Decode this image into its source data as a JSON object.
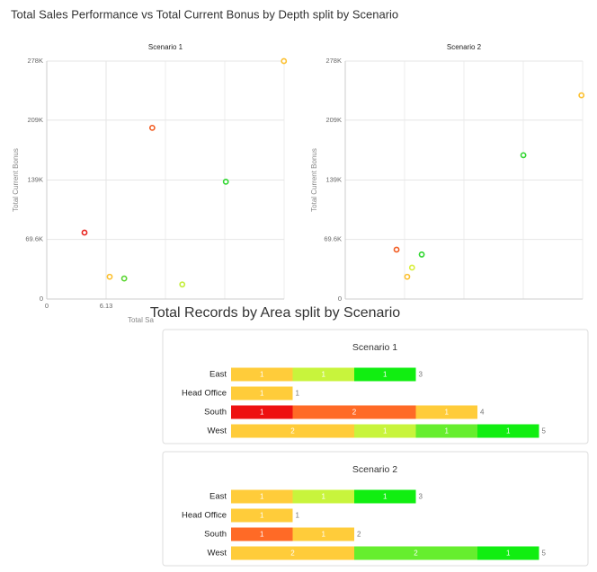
{
  "dashboard": {
    "scatter_title": "Total Sales Performance vs Total Current Bonus by Depth split by Scenario",
    "bar_title": "Total Records by Area split by Scenario"
  },
  "chart_data": [
    {
      "type": "scatter",
      "title": "Scenario 1",
      "xlabel": "Total Sa",
      "ylabel": "Total Current Bonus",
      "x": [
        3.9,
        10.9,
        24.5,
        18.5,
        6.5,
        8.0,
        14.0
      ],
      "values": [
        77600,
        200000,
        278000,
        137000,
        26000,
        24000,
        17000
      ],
      "colors": [
        "#e8231e",
        "#f25c22",
        "#fcc02f",
        "#2fd62f",
        "#fcc02f",
        "#5ad632",
        "#c4ee3a"
      ],
      "xlim": [
        0,
        24.52
      ],
      "ylim": [
        0,
        278000
      ],
      "xticks": [
        0,
        6.13
      ],
      "yticks": [
        0,
        {
          "value": 69600,
          "label": "69.6K"
        },
        {
          "value": 139000,
          "label": "139K"
        },
        {
          "value": 209000,
          "label": "209K"
        },
        {
          "value": 278000,
          "label": "278K"
        }
      ],
      "grid": true
    },
    {
      "type": "scatter",
      "title": "Scenario 2",
      "ylabel": "Total Current Bonus",
      "x": [
        5.3,
        6.9,
        6.4,
        7.9,
        18.4,
        24.4
      ],
      "values": [
        57700,
        36700,
        26000,
        52000,
        168000,
        238000
      ],
      "colors": [
        "#f25c22",
        "#d8ee3a",
        "#fcc02f",
        "#2fd62f",
        "#2fd62f",
        "#fcc02f"
      ],
      "xlim": [
        0,
        24.52
      ],
      "ylim": [
        0,
        278000
      ],
      "yticks": [
        0,
        {
          "value": 69600,
          "label": "69.6K"
        },
        {
          "value": 139000,
          "label": "139K"
        },
        {
          "value": 209000,
          "label": "209K"
        },
        {
          "value": 278000,
          "label": "278K"
        }
      ],
      "grid": true
    },
    {
      "type": "bar",
      "orientation": "horizontal",
      "stacked": true,
      "title": "Scenario 1",
      "categories": [
        "East",
        "Head Office",
        "South",
        "West"
      ],
      "series": [
        {
          "color": "#ee1111",
          "values": [
            null,
            null,
            1,
            null
          ]
        },
        {
          "color": "#ff6a26",
          "values": [
            null,
            null,
            2,
            null
          ]
        },
        {
          "color": "#ffcc3a",
          "values": [
            1,
            1,
            1,
            2
          ]
        },
        {
          "color": "#c8f43c",
          "values": [
            1,
            null,
            null,
            1
          ]
        },
        {
          "color": "#66ee2e",
          "values": [
            null,
            null,
            null,
            1
          ]
        },
        {
          "color": "#11ee11",
          "values": [
            1,
            null,
            null,
            1
          ]
        }
      ],
      "totals": [
        3,
        1,
        4,
        5
      ]
    },
    {
      "type": "bar",
      "orientation": "horizontal",
      "stacked": true,
      "title": "Scenario 2",
      "categories": [
        "East",
        "Head Office",
        "South",
        "West"
      ],
      "series": [
        {
          "color": "#ff6a26",
          "values": [
            null,
            null,
            1,
            null
          ]
        },
        {
          "color": "#ffcc3a",
          "values": [
            1,
            1,
            1,
            2
          ]
        },
        {
          "color": "#c8f43c",
          "values": [
            1,
            null,
            null,
            null
          ]
        },
        {
          "color": "#66ee2e",
          "values": [
            null,
            null,
            null,
            2
          ]
        },
        {
          "color": "#11ee11",
          "values": [
            1,
            null,
            null,
            1
          ]
        }
      ],
      "totals": [
        3,
        1,
        2,
        5
      ]
    }
  ]
}
